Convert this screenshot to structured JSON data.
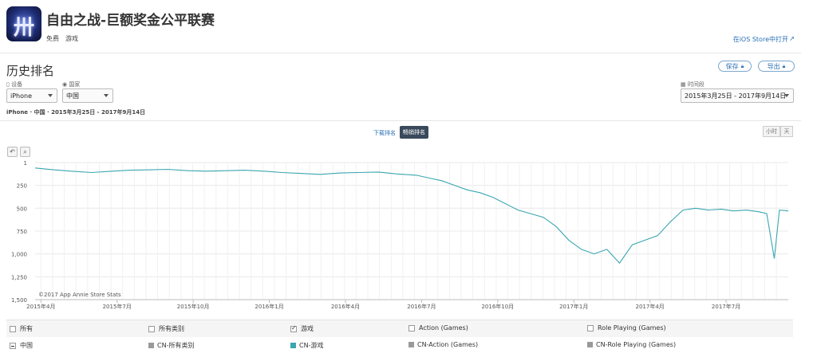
{
  "app": {
    "title": "自由之战-巨额奖金公平联赛",
    "price": "免费",
    "category": "游戏",
    "open_in_store": "在iOS Store中打开",
    "open_icon": "external-link-icon"
  },
  "section": {
    "title": "历史排名",
    "save_label": "保存",
    "export_label": "导出",
    "save_icon": "lock-icon",
    "export_icon": "lock-icon"
  },
  "filters": {
    "device_label": "设备",
    "device_value": "iPhone",
    "country_label": "国家",
    "country_value": "中国",
    "time_label": "时间段",
    "time_value": "2015年3月25日 - 2017年9月14日",
    "summary": "iPhone · 中国 · 2015年3月25日 - 2017年9月14日"
  },
  "tabs": {
    "downloads": "下载排名",
    "grossing": "畅销排名",
    "hour": "小时",
    "day": "天"
  },
  "tools": {
    "reset_icon": "undo-icon",
    "zoom_icon": "zoom-icon"
  },
  "chart_data": {
    "type": "line",
    "y_reversed": true,
    "ylim": [
      1,
      1500
    ],
    "yticks": [
      "1",
      "250",
      "500",
      "750",
      "1,000",
      "1,250",
      "1,500"
    ],
    "ytick_values": [
      1,
      250,
      500,
      750,
      1000,
      1250,
      1500
    ],
    "xticks": [
      "2015年4月",
      "2015年7月",
      "2015年10月",
      "2016年1月",
      "2016年4月",
      "2016年7月",
      "2016年10月",
      "2017年1月",
      "2017年4月",
      "2017年7月"
    ],
    "xtick_months": [
      0,
      3,
      6,
      9,
      12,
      15,
      18,
      21,
      24,
      27
    ],
    "x_range_months": [
      -0.23,
      29.45
    ],
    "watermark": "©2017 App Annie Store Stats",
    "grid": true,
    "color": "#3aa6b0",
    "series": [
      {
        "values": [
          [
            -0.23,
            60
          ],
          [
            0.5,
            80
          ],
          [
            1.2,
            95
          ],
          [
            2.0,
            110
          ],
          [
            2.8,
            95
          ],
          [
            3.5,
            85
          ],
          [
            4.3,
            80
          ],
          [
            5.0,
            75
          ],
          [
            5.8,
            90
          ],
          [
            6.5,
            95
          ],
          [
            7.3,
            90
          ],
          [
            8.0,
            85
          ],
          [
            8.8,
            95
          ],
          [
            9.5,
            110
          ],
          [
            10.3,
            120
          ],
          [
            11.0,
            130
          ],
          [
            11.8,
            115
          ],
          [
            12.5,
            110
          ],
          [
            13.3,
            105
          ],
          [
            14.0,
            125
          ],
          [
            14.8,
            140
          ],
          [
            15.3,
            170
          ],
          [
            15.8,
            200
          ],
          [
            16.3,
            250
          ],
          [
            16.8,
            300
          ],
          [
            17.3,
            330
          ],
          [
            17.8,
            380
          ],
          [
            18.3,
            450
          ],
          [
            18.8,
            520
          ],
          [
            19.3,
            560
          ],
          [
            19.8,
            600
          ],
          [
            20.3,
            700
          ],
          [
            20.8,
            850
          ],
          [
            21.3,
            950
          ],
          [
            21.8,
            1000
          ],
          [
            22.3,
            950
          ],
          [
            22.8,
            1100
          ],
          [
            23.3,
            900
          ],
          [
            23.8,
            850
          ],
          [
            24.3,
            800
          ],
          [
            24.8,
            650
          ],
          [
            25.3,
            520
          ],
          [
            25.8,
            500
          ],
          [
            26.3,
            520
          ],
          [
            26.8,
            510
          ],
          [
            27.3,
            530
          ],
          [
            27.8,
            520
          ],
          [
            28.3,
            540
          ],
          [
            28.6,
            560
          ],
          [
            28.9,
            1050
          ],
          [
            29.1,
            520
          ],
          [
            29.45,
            530
          ]
        ]
      }
    ]
  },
  "legend": {
    "row1": [
      {
        "label": "所有",
        "checked": false
      },
      {
        "label": "所有类别",
        "checked": false
      },
      {
        "label": "游戏",
        "checked": true
      },
      {
        "label": "Action (Games)",
        "checked": false
      },
      {
        "label": "Role Playing (Games)",
        "checked": false
      }
    ],
    "row2_country": "中国",
    "row2": [
      {
        "label": "CN-所有类别",
        "color": "#999999"
      },
      {
        "label": "CN-游戏",
        "color": "#3aa6b0"
      },
      {
        "label": "CN-Action (Games)",
        "color": "#999999"
      },
      {
        "label": "CN-Role Playing (Games)",
        "color": "#999999"
      }
    ]
  }
}
